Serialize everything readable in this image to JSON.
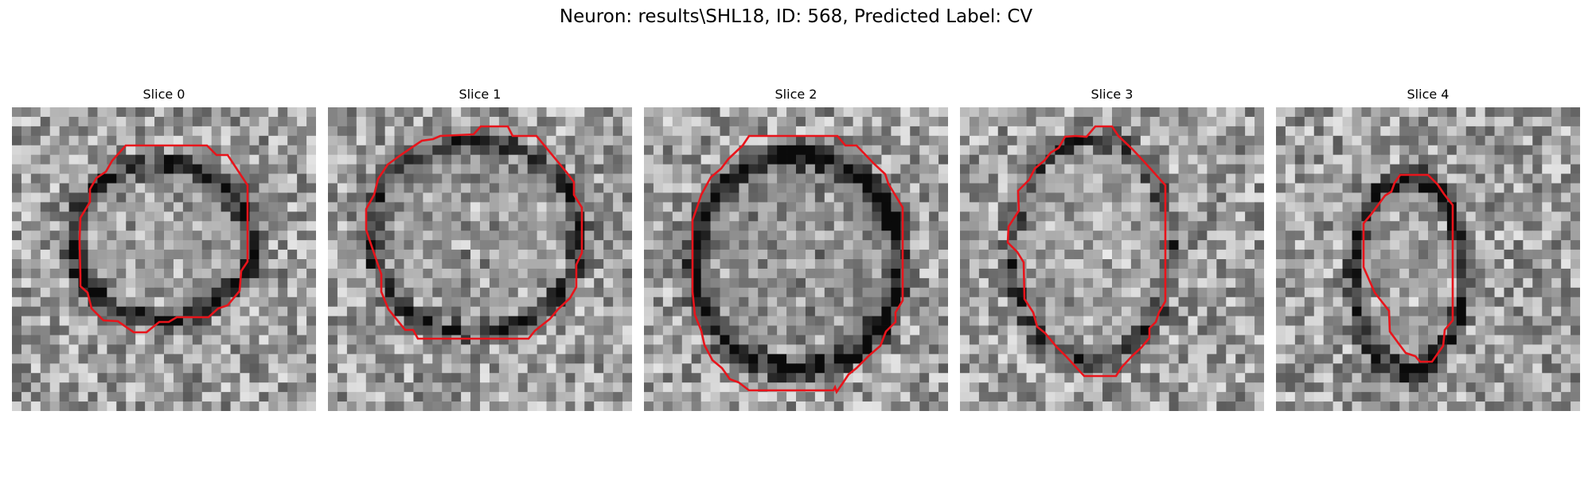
{
  "figure": {
    "title": "Neuron: results\\SHL18, ID: 568, Predicted Label: CV"
  },
  "slices": [
    {
      "title": "Slice 0"
    },
    {
      "title": "Slice 1"
    },
    {
      "title": "Slice 2"
    },
    {
      "title": "Slice 3"
    },
    {
      "title": "Slice 4"
    }
  ],
  "colors": {
    "contour": "#e8141b",
    "background": "#ffffff"
  }
}
